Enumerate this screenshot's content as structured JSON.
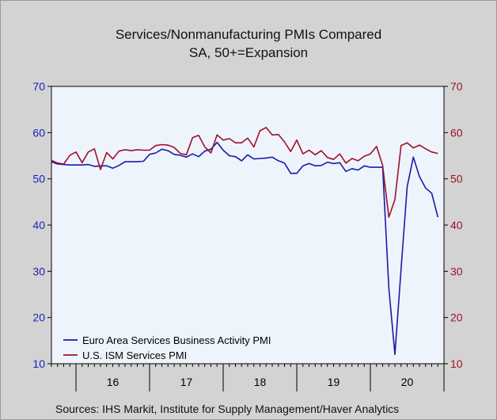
{
  "chart": {
    "title": "Services/Nonmanufacturing PMIs Compared",
    "subtitle": "SA, 50+=Expansion",
    "source": "Sources:  IHS Markit, Institute for Supply Management/Haver Analytics"
  },
  "colors": {
    "plot_bg": "#eef4fc",
    "euro": "#1a1aa8",
    "us": "#a0102a",
    "left_axis": "#2020c0",
    "right_axis": "#a0102a",
    "frame_bg": "#d3d3d3"
  },
  "chart_data": {
    "type": "line",
    "title": "Services/Nonmanufacturing PMIs Compared",
    "subtitle": "SA, 50+=Expansion",
    "x_tick_labels": [
      "16",
      "17",
      "18",
      "19",
      "20"
    ],
    "ylim_left": [
      10,
      70
    ],
    "ylim_right": [
      10,
      70
    ],
    "y_ticks": [
      10,
      20,
      30,
      40,
      50,
      60,
      70
    ],
    "grid": false,
    "legend_position": "bottom-left",
    "start": "2015-09",
    "series": [
      {
        "name": "Euro Area Services Business Activity PMI",
        "axis": "left",
        "values": [
          53.7,
          53.2,
          53.1,
          53.0,
          53.0,
          53.0,
          53.1,
          52.7,
          52.8,
          52.8,
          52.3,
          52.9,
          53.7,
          53.7,
          53.7,
          53.8,
          55.3,
          55.6,
          56.4,
          56.1,
          55.3,
          55.1,
          54.7,
          55.4,
          54.8,
          56.0,
          56.4,
          57.9,
          56.2,
          55.0,
          54.8,
          53.9,
          55.2,
          54.3,
          54.4,
          54.5,
          54.7,
          53.9,
          53.4,
          51.2,
          51.2,
          52.8,
          53.3,
          52.8,
          52.9,
          53.6,
          53.3,
          53.5,
          51.6,
          52.2,
          51.9,
          52.8,
          52.5,
          52.5,
          52.5,
          26.4,
          12.0,
          30.5,
          48.3,
          54.7,
          50.5,
          48.0,
          46.9,
          41.7
        ]
      },
      {
        "name": "U.S. ISM Services PMI",
        "axis": "right",
        "values": [
          54.0,
          53.4,
          53.2,
          55.1,
          55.8,
          53.5,
          55.8,
          56.5,
          52.0,
          55.7,
          54.3,
          56.0,
          56.3,
          56.1,
          56.3,
          56.2,
          56.2,
          57.2,
          57.4,
          57.3,
          56.8,
          55.5,
          55.2,
          58.9,
          59.4,
          56.9,
          55.6,
          59.5,
          58.4,
          58.7,
          57.8,
          57.8,
          58.8,
          56.9,
          60.4,
          61.1,
          59.5,
          59.6,
          58.0,
          55.9,
          58.4,
          55.4,
          56.2,
          55.2,
          56.1,
          54.6,
          54.2,
          55.4,
          53.4,
          54.4,
          53.9,
          54.9,
          55.4,
          57.0,
          52.9,
          41.7,
          45.5,
          57.2,
          57.8,
          56.7,
          57.3,
          56.5,
          55.8,
          55.5
        ]
      }
    ]
  }
}
